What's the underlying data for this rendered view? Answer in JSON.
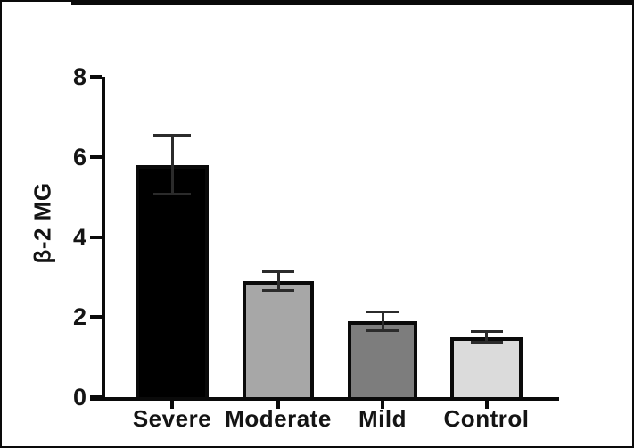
{
  "figure": {
    "background_color": "#ffffff",
    "frame_color": "#0a0a0a",
    "axis_color": "#0a0a0a",
    "text_color": "#141414"
  },
  "chart_data": {
    "type": "bar",
    "title": "",
    "xlabel": "",
    "ylabel": "β-2 MG",
    "categories": [
      "Severe",
      "Moderate",
      "Mild",
      "Control"
    ],
    "values": [
      5.8,
      2.9,
      1.9,
      1.5
    ],
    "error_upper": [
      6.55,
      3.15,
      2.15,
      1.65
    ],
    "error_lower": [
      5.05,
      2.65,
      1.65,
      1.35
    ],
    "bar_colors": [
      "#000000",
      "#A7A7A7",
      "#7D7D7D",
      "#DBDBDB"
    ],
    "error_bar_color": "#2b2b2b",
    "ylim": [
      0,
      8
    ],
    "yticks": [
      0,
      2,
      4,
      6,
      8
    ],
    "grid": false,
    "legend": null
  }
}
